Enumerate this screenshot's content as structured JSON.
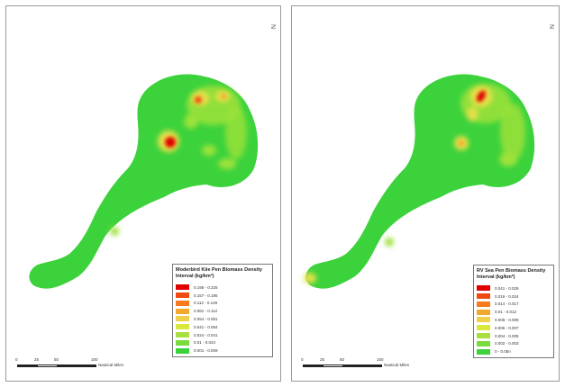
{
  "maps": [
    {
      "id": "left",
      "legend": {
        "title": "Moderbird Kiie Pen Biomass Density Interval (kg/km²)",
        "items": [
          {
            "label": "0.195 - 0.225",
            "color": "#e00000"
          },
          {
            "label": "0.157 - 0.195",
            "color": "#f04a10"
          },
          {
            "label": "0.112 - 0.149",
            "color": "#f77a1c"
          },
          {
            "label": "0.081 - 0.112",
            "color": "#f2a82a"
          },
          {
            "label": "0.054 - 0.081",
            "color": "#f0d04a"
          },
          {
            "label": "0.041 - 0.054",
            "color": "#d8e83c"
          },
          {
            "label": "0.024 - 0.041",
            "color": "#a8e040"
          },
          {
            "label": "0.01 - 0.024",
            "color": "#78dc3c"
          },
          {
            "label": "0.001 - 0.009",
            "color": "#3cd23c"
          }
        ]
      },
      "scale": {
        "ticks": [
          "0",
          "25",
          "50",
          "100"
        ],
        "unit": "Nautical Miles"
      },
      "north_label": "N"
    },
    {
      "id": "right",
      "legend": {
        "title": "RV Sea Pen Biomass Density Interval (kg/km²)",
        "items": [
          {
            "label": "0.041 - 0.029",
            "color": "#e00000"
          },
          {
            "label": "0.016 - 0.024",
            "color": "#f04a10"
          },
          {
            "label": "0.014 - 0.017",
            "color": "#f77a1c"
          },
          {
            "label": "0.01 - 0.012",
            "color": "#f2a82a"
          },
          {
            "label": "0.008 - 0.009",
            "color": "#f0d04a"
          },
          {
            "label": "0.006 - 0.007",
            "color": "#d8e83c"
          },
          {
            "label": "0.004 - 0.005",
            "color": "#a8e040"
          },
          {
            "label": "0.002 - 0.003",
            "color": "#78dc3c"
          },
          {
            "label": "0 - 0.0bn",
            "color": "#3cd23c"
          }
        ]
      },
      "scale": {
        "ticks": [
          "0",
          "25",
          "50",
          "100"
        ],
        "unit": "Nautical Miles"
      },
      "north_label": "N"
    }
  ],
  "colors": {
    "base_green": "#3cd23c",
    "light_green": "#9ee23a",
    "yellow": "#e8e04a",
    "orange": "#f3a030",
    "red": "#e00000"
  }
}
